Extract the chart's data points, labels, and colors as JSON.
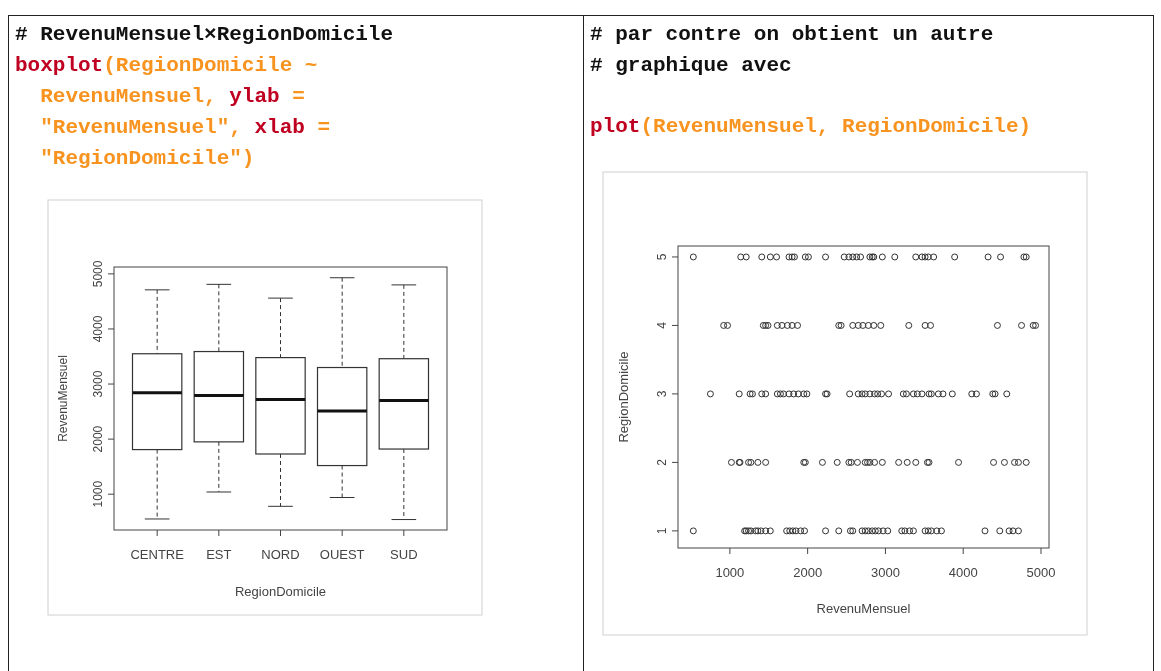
{
  "chart_data": [
    {
      "type": "box",
      "annotations": [
        "# RevenuMensuel×RegionDomicile",
        "boxplot(RegionDomicile ~",
        "  RevenuMensuel, ylab =",
        "  \"RevenuMensuel\", xlab =",
        "  \"RegionDomicile\")"
      ],
      "categories": [
        "CENTRE",
        "EST",
        "NORD",
        "OUEST",
        "SUD"
      ],
      "boxes": [
        {
          "low": 550,
          "q1": 1810,
          "median": 2840,
          "q3": 3550,
          "high": 4710
        },
        {
          "low": 1040,
          "q1": 1950,
          "median": 2790,
          "q3": 3590,
          "high": 4810
        },
        {
          "low": 780,
          "q1": 1730,
          "median": 2720,
          "q3": 3480,
          "high": 4560
        },
        {
          "low": 940,
          "q1": 1520,
          "median": 2510,
          "q3": 3300,
          "high": 4930
        },
        {
          "low": 540,
          "q1": 1820,
          "median": 2700,
          "q3": 3460,
          "high": 4800
        }
      ],
      "ylim": [
        350,
        5125
      ],
      "yticks": [
        1000,
        2000,
        3000,
        4000,
        5000
      ],
      "xlabel": "RegionDomicile",
      "ylabel": "RevenuMensuel",
      "grid": false
    },
    {
      "type": "scatter",
      "annotations": [
        "# par contre on obtient un autre",
        "# graphique avec",
        "plot(RevenuMensuel, RegionDomicile)"
      ],
      "marker": "circle",
      "xlabel": "RevenuMensuel",
      "ylabel": "RegionDomicile",
      "xlim": [
        333,
        5103
      ],
      "xticks": [
        1000,
        2000,
        3000,
        4000,
        5000
      ],
      "ylim": [
        0.75,
        5.16
      ],
      "yticks": [
        1,
        2,
        3,
        4,
        5
      ],
      "series": [
        {
          "color": "#333333",
          "x": [
            530,
            1190,
            1210,
            1240,
            1270,
            1330,
            1360,
            1400,
            1460,
            1520,
            1730,
            1770,
            1810,
            1850,
            1910,
            1960,
            2230,
            2400,
            2550,
            2580,
            2700,
            2740,
            2780,
            2830,
            2870,
            2910,
            2970,
            3030,
            3210,
            3250,
            3310,
            3360,
            3510,
            3550,
            3590,
            3660,
            3720,
            4280,
            4470,
            4590,
            4640,
            4710
          ],
          "values": [
            1,
            1,
            1,
            1,
            1,
            1,
            1,
            1,
            1,
            1,
            1,
            1,
            1,
            1,
            1,
            1,
            1,
            1,
            1,
            1,
            1,
            1,
            1,
            1,
            1,
            1,
            1,
            1,
            1,
            1,
            1,
            1,
            1,
            1,
            1,
            1,
            1,
            1,
            1,
            1,
            1,
            1
          ]
        },
        {
          "color": "#333333",
          "x": [
            1020,
            1120,
            1130,
            1240,
            1270,
            1360,
            1460,
            1950,
            1970,
            2190,
            2380,
            2530,
            2560,
            2640,
            2740,
            2770,
            2800,
            2860,
            2960,
            3170,
            3280,
            3390,
            3540,
            3560,
            3940,
            4390,
            4530,
            4660,
            4710,
            4810
          ],
          "values": [
            2,
            2,
            2,
            2,
            2,
            2,
            2,
            2,
            2,
            2,
            2,
            2,
            2,
            2,
            2,
            2,
            2,
            2,
            2,
            2,
            2,
            2,
            2,
            2,
            2,
            2,
            2,
            2,
            2,
            2
          ]
        },
        {
          "color": "#333333",
          "x": [
            750,
            1120,
            1260,
            1290,
            1410,
            1460,
            1610,
            1650,
            1690,
            1760,
            1820,
            1880,
            1950,
            1990,
            2230,
            2250,
            2540,
            2650,
            2700,
            2740,
            2800,
            2860,
            2900,
            2950,
            3040,
            3230,
            3270,
            3360,
            3410,
            3470,
            3560,
            3590,
            3680,
            3740,
            3860,
            4110,
            4170,
            4380,
            4410,
            4560
          ],
          "values": [
            3,
            3,
            3,
            3,
            3,
            3,
            3,
            3,
            3,
            3,
            3,
            3,
            3,
            3,
            3,
            3,
            3,
            3,
            3,
            3,
            3,
            3,
            3,
            3,
            3,
            3,
            3,
            3,
            3,
            3,
            3,
            3,
            3,
            3,
            3,
            3,
            3,
            3,
            3,
            3
          ]
        },
        {
          "color": "#333333",
          "x": [
            920,
            970,
            1430,
            1460,
            1490,
            1610,
            1670,
            1740,
            1800,
            1870,
            2400,
            2430,
            2580,
            2650,
            2710,
            2780,
            2850,
            2940,
            3300,
            3510,
            3580,
            4440,
            4750,
            4900,
            4930
          ],
          "values": [
            4,
            4,
            4,
            4,
            4,
            4,
            4,
            4,
            4,
            4,
            4,
            4,
            4,
            4,
            4,
            4,
            4,
            4,
            4,
            4,
            4,
            4,
            4,
            4,
            4
          ]
        },
        {
          "color": "#333333",
          "x": [
            530,
            1140,
            1210,
            1410,
            1520,
            1600,
            1760,
            1800,
            1830,
            1970,
            2010,
            2230,
            2470,
            2530,
            2580,
            2630,
            2680,
            2800,
            2830,
            2850,
            2960,
            3120,
            3390,
            3470,
            3510,
            3550,
            3620,
            3890,
            4320,
            4480,
            4780,
            4810
          ],
          "values": [
            5,
            5,
            5,
            5,
            5,
            5,
            5,
            5,
            5,
            5,
            5,
            5,
            5,
            5,
            5,
            5,
            5,
            5,
            5,
            5,
            5,
            5,
            5,
            5,
            5,
            5,
            5,
            5,
            5,
            5,
            5,
            5
          ]
        }
      ]
    }
  ]
}
